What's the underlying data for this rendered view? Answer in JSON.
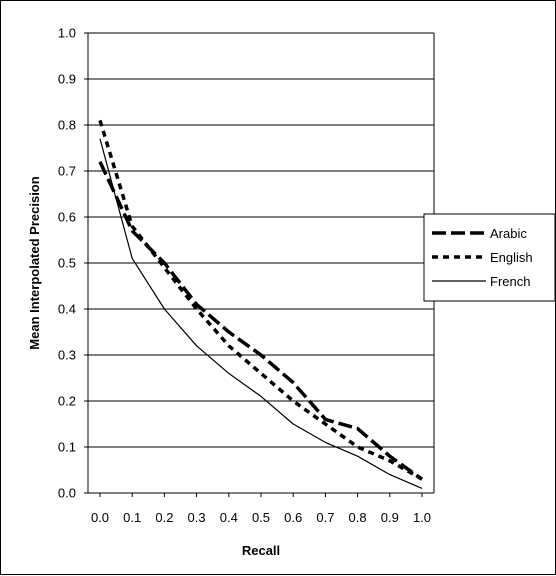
{
  "chart_data": {
    "type": "line",
    "xlabel": "Recall",
    "ylabel": "Mean Interpolated Precision",
    "xlim": [
      0.0,
      1.0
    ],
    "ylim": [
      0.0,
      1.0
    ],
    "x_ticks": [
      "0.0",
      "0.1",
      "0.2",
      "0.3",
      "0.4",
      "0.5",
      "0.6",
      "0.7",
      "0.8",
      "0.9",
      "1.0"
    ],
    "y_ticks": [
      "0.0",
      "0.1",
      "0.2",
      "0.3",
      "0.4",
      "0.5",
      "0.6",
      "0.7",
      "0.8",
      "0.9",
      "1.0"
    ],
    "grid": "horizontal",
    "legend_position": "right",
    "x": [
      0.0,
      0.1,
      0.2,
      0.3,
      0.4,
      0.5,
      0.6,
      0.7,
      0.8,
      0.9,
      1.0
    ],
    "series": [
      {
        "name": "Arabic",
        "style": "long-dash",
        "color": "#000000",
        "values": [
          0.72,
          0.57,
          0.5,
          0.41,
          0.35,
          0.3,
          0.24,
          0.16,
          0.14,
          0.08,
          0.03
        ]
      },
      {
        "name": "English",
        "style": "short-dash",
        "color": "#000000",
        "values": [
          0.81,
          0.58,
          0.49,
          0.4,
          0.32,
          0.26,
          0.2,
          0.15,
          0.1,
          0.07,
          0.03
        ]
      },
      {
        "name": "French",
        "style": "solid-thin",
        "color": "#000000",
        "values": [
          0.77,
          0.51,
          0.4,
          0.32,
          0.26,
          0.21,
          0.15,
          0.11,
          0.08,
          0.04,
          0.01
        ]
      }
    ]
  }
}
